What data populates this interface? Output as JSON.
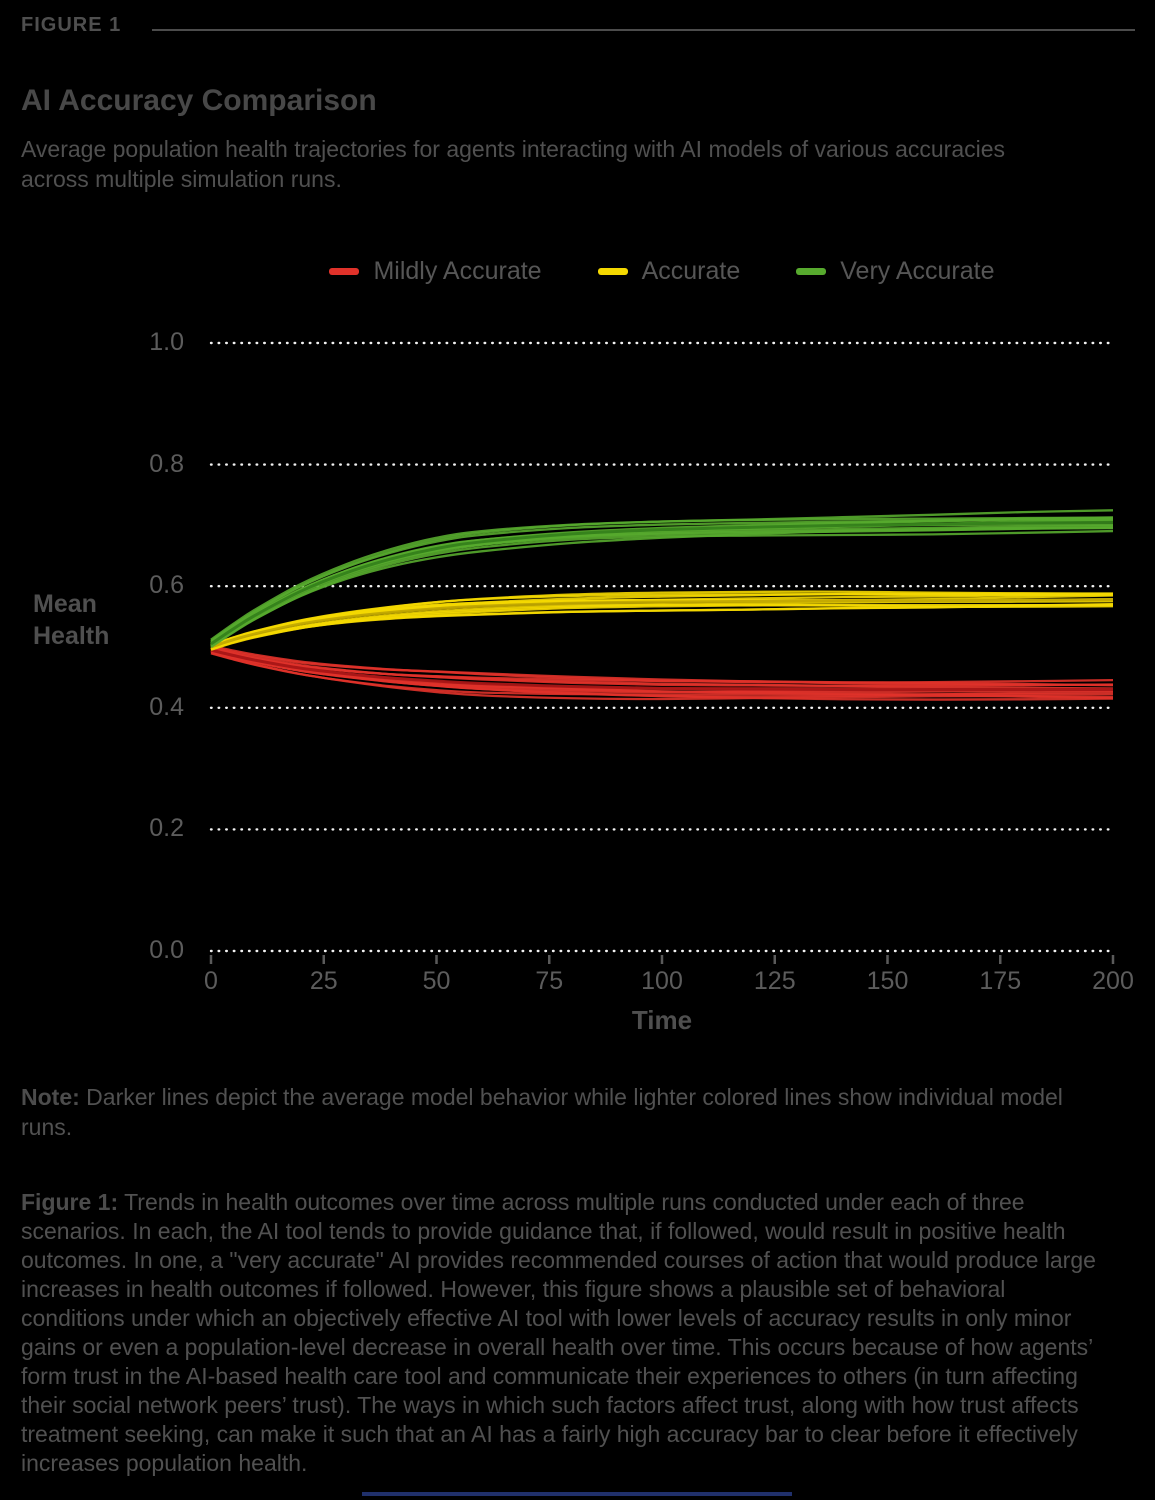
{
  "header": {
    "figure_label": "FIGURE 1",
    "title": "AI Accuracy Comparison",
    "subtitle": "Average population health trajectories for agents interacting with AI models of various accuracies across multiple simulation runs."
  },
  "note": {
    "label": "Note:",
    "text": " Darker lines depict the average model behavior while lighter colored lines show individual model runs."
  },
  "caption": {
    "label": "Figure 1:",
    "text": " Trends in health outcomes over time across multiple runs conducted under each of three scenarios. In each, the AI tool tends to provide guidance that, if followed, would result in positive health outcomes. In one, a \"very accurate\" AI provides recommended courses of action that would produce large increases in health outcomes if followed. However, this figure shows a plausible set of behavioral conditions under which an objectively effective AI tool with lower levels of accuracy results in only minor gains or even a population-level decrease in overall health over time. This occurs because of how agents’ form trust in the AI-based health care tool and communicate their experiences to others (in turn affecting their social network peers’ trust). The ways in which such factors affect trust, along with how trust affects treatment seeking, can make it such that an AI has a fairly high accuracy bar to clear before it effectively increases population health."
  },
  "chart_data": {
    "type": "line",
    "title": "AI Accuracy Comparison",
    "xlabel": "Time",
    "ylabel": "Mean Health",
    "xlim": [
      0,
      200
    ],
    "ylim": [
      0.0,
      1.0
    ],
    "xticks": [
      0,
      25,
      50,
      75,
      100,
      125,
      150,
      175,
      200
    ],
    "yticks": [
      0.0,
      0.2,
      0.4,
      0.6,
      0.8,
      1.0
    ],
    "grid": "dotted-horizontal",
    "grid_color": "#ffffff",
    "legend_position": "top-center",
    "x": [
      0,
      5,
      10,
      20,
      30,
      40,
      50,
      60,
      80,
      100,
      120,
      140,
      160,
      180,
      200
    ],
    "series": [
      {
        "name": "Mildly Accurate",
        "color": "#e0322a",
        "mean_color": "#a81616",
        "band": 0.016,
        "runs": 13,
        "values": [
          0.495,
          0.486,
          0.478,
          0.465,
          0.456,
          0.449,
          0.444,
          0.44,
          0.435,
          0.432,
          0.431,
          0.43,
          0.43,
          0.43,
          0.43
        ]
      },
      {
        "name": "Accurate",
        "color": "#f4d800",
        "mean_color": "#c2a900",
        "band": 0.013,
        "runs": 13,
        "values": [
          0.5,
          0.512,
          0.522,
          0.538,
          0.549,
          0.557,
          0.563,
          0.567,
          0.572,
          0.574,
          0.575,
          0.576,
          0.576,
          0.577,
          0.578
        ]
      },
      {
        "name": "Very Accurate",
        "color": "#57aa2e",
        "mean_color": "#35811b",
        "band": 0.014,
        "runs": 13,
        "values": [
          0.505,
          0.53,
          0.553,
          0.592,
          0.622,
          0.645,
          0.662,
          0.673,
          0.686,
          0.693,
          0.697,
          0.7,
          0.702,
          0.704,
          0.705
        ]
      }
    ]
  }
}
